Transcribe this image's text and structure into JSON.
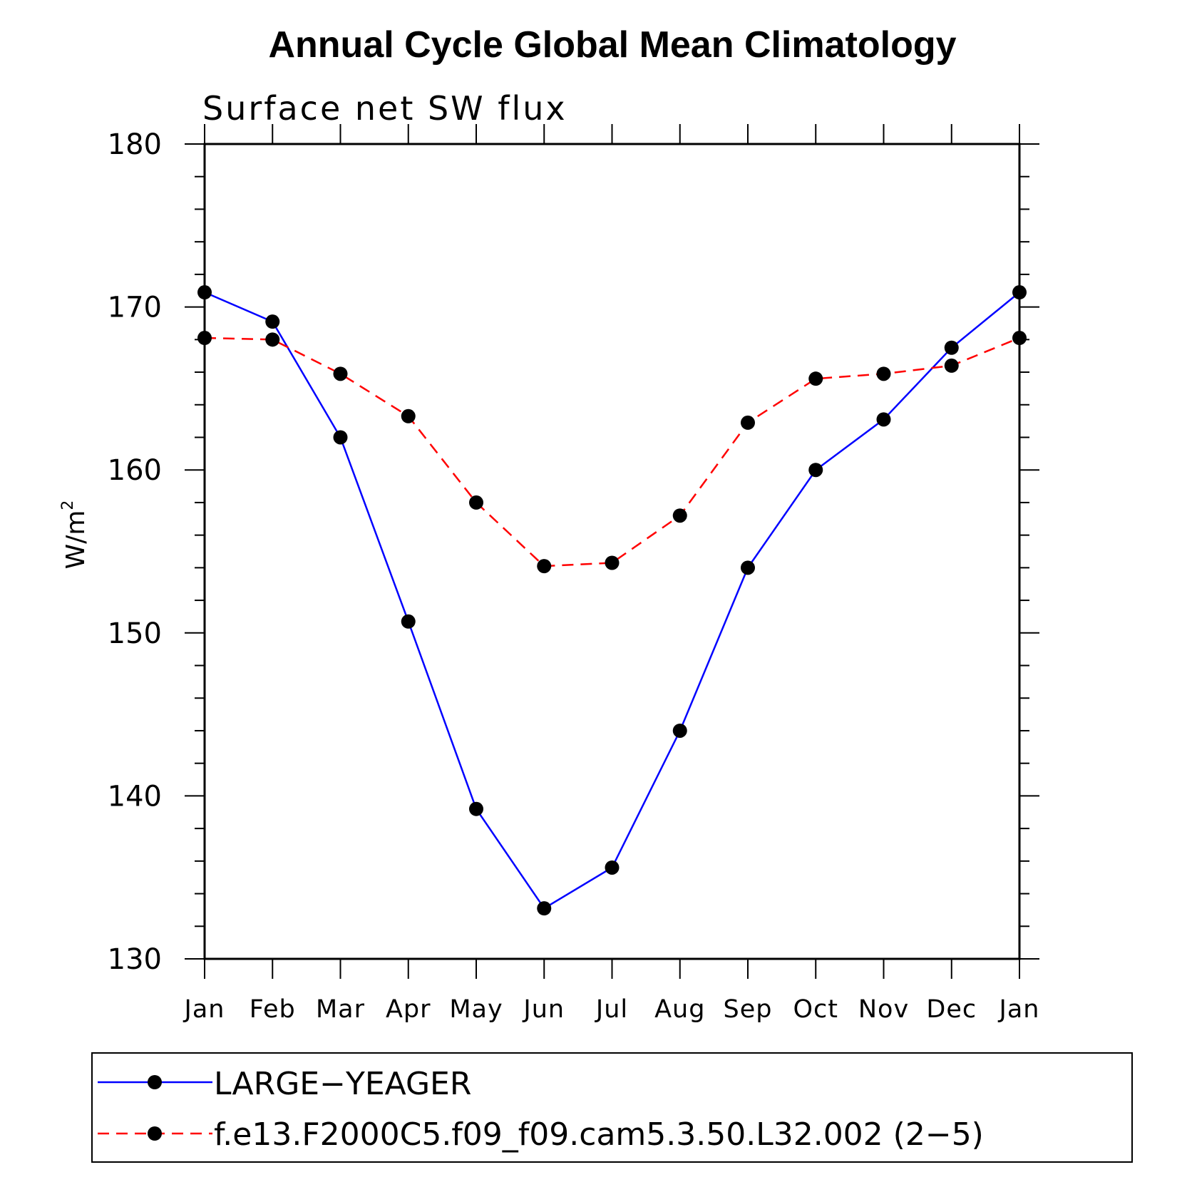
{
  "chart_data": {
    "type": "line",
    "title": "Annual Cycle Global Mean Climatology",
    "subtitle": "Surface net SW flux",
    "ylabel": "W/m",
    "ylabel_superscript": "2",
    "xlabel": "",
    "ylim": [
      130,
      180
    ],
    "yticks": [
      130,
      140,
      150,
      160,
      170,
      180
    ],
    "categories": [
      "Jan",
      "Feb",
      "Mar",
      "Apr",
      "May",
      "Jun",
      "Jul",
      "Aug",
      "Sep",
      "Oct",
      "Nov",
      "Dec",
      "Jan"
    ],
    "series": [
      {
        "name": "LARGE−YEAGER",
        "color": "#0000ff",
        "dashed": false,
        "values": [
          170.9,
          169.1,
          162.0,
          150.7,
          139.2,
          133.1,
          135.6,
          144.0,
          154.0,
          160.0,
          163.1,
          167.5,
          170.9
        ]
      },
      {
        "name": "f.e13.F2000C5.f09_f09.cam5.3.50.L32.002 (2−5)",
        "color": "#ff0000",
        "dashed": true,
        "values": [
          168.1,
          168.0,
          165.9,
          163.3,
          158.0,
          154.1,
          154.3,
          157.2,
          162.9,
          165.6,
          165.9,
          166.4,
          168.1
        ]
      }
    ],
    "marker_color": "#000000",
    "legend": "bottom"
  }
}
